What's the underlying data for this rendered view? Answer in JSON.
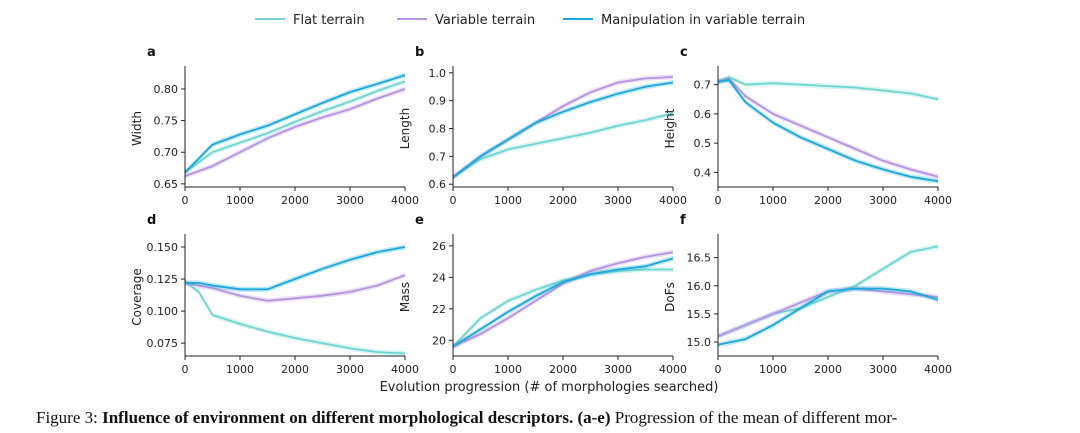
{
  "colors": {
    "flat": "#6fd6cf",
    "variable": "#b593e0",
    "manip": "#1ba8dc"
  },
  "legend": [
    "Flat terrain",
    "Variable terrain",
    "Manipulation in variable terrain"
  ],
  "xlabel": "Evolution progression (# of morphologies searched)",
  "caption": {
    "prefix": "Figure 3: ",
    "title": "Influence of environment on different morphological descriptors.",
    "ref": "(a-e)",
    "rest": " Progression of the mean of different mor-"
  },
  "chart_data": [
    {
      "type": "line",
      "panel": "a",
      "ylabel": "Width",
      "xlim": [
        0,
        4000
      ],
      "ylim": [
        0.645,
        0.83
      ],
      "xticks": [
        "0",
        "1000",
        "2000",
        "3000",
        "4000"
      ],
      "yticks": [
        0.65,
        0.7,
        0.75,
        0.8
      ],
      "ytick_labels": [
        "0.65",
        "0.70",
        "0.75",
        "0.80"
      ],
      "x": [
        0,
        500,
        1000,
        1500,
        2000,
        2500,
        3000,
        3500,
        4000
      ],
      "series": [
        {
          "name": "Flat terrain",
          "values": [
            0.668,
            0.7,
            0.715,
            0.73,
            0.748,
            0.765,
            0.78,
            0.797,
            0.812
          ]
        },
        {
          "name": "Variable terrain",
          "values": [
            0.662,
            0.678,
            0.7,
            0.722,
            0.74,
            0.755,
            0.768,
            0.785,
            0.8
          ]
        },
        {
          "name": "Manipulation in variable terrain",
          "values": [
            0.668,
            0.712,
            0.728,
            0.742,
            0.76,
            0.778,
            0.795,
            0.808,
            0.822
          ]
        }
      ]
    },
    {
      "type": "line",
      "panel": "b",
      "ylabel": "Length",
      "xlim": [
        0,
        4000
      ],
      "ylim": [
        0.59,
        1.01
      ],
      "xticks": [
        "0",
        "1000",
        "2000",
        "3000",
        "4000"
      ],
      "yticks": [
        0.6,
        0.7,
        0.8,
        0.9,
        1.0
      ],
      "ytick_labels": [
        "0.6",
        "0.7",
        "0.8",
        "0.9",
        "1.0"
      ],
      "x": [
        0,
        500,
        1000,
        1500,
        2000,
        2500,
        3000,
        3500,
        4000
      ],
      "series": [
        {
          "name": "Flat terrain",
          "values": [
            0.625,
            0.69,
            0.725,
            0.745,
            0.765,
            0.785,
            0.81,
            0.83,
            0.855
          ]
        },
        {
          "name": "Variable terrain",
          "values": [
            0.625,
            0.7,
            0.76,
            0.82,
            0.88,
            0.93,
            0.965,
            0.98,
            0.985
          ]
        },
        {
          "name": "Manipulation in variable terrain",
          "values": [
            0.625,
            0.7,
            0.76,
            0.82,
            0.86,
            0.895,
            0.925,
            0.95,
            0.965
          ]
        }
      ]
    },
    {
      "type": "line",
      "panel": "c",
      "ylabel": "Height",
      "xlim": [
        0,
        4000
      ],
      "ylim": [
        0.35,
        0.75
      ],
      "xticks": [
        "0",
        "1000",
        "2000",
        "3000",
        "4000"
      ],
      "yticks": [
        0.4,
        0.5,
        0.6,
        0.7
      ],
      "ytick_labels": [
        "0.4",
        "0.5",
        "0.6",
        "0.7"
      ],
      "x": [
        0,
        200,
        500,
        1000,
        1500,
        2000,
        2500,
        3000,
        3500,
        4000
      ],
      "series": [
        {
          "name": "Flat terrain",
          "values": [
            0.71,
            0.725,
            0.7,
            0.705,
            0.7,
            0.695,
            0.69,
            0.68,
            0.67,
            0.65
          ]
        },
        {
          "name": "Variable terrain",
          "values": [
            0.71,
            0.72,
            0.66,
            0.6,
            0.56,
            0.52,
            0.48,
            0.44,
            0.41,
            0.385
          ]
        },
        {
          "name": "Manipulation in variable terrain",
          "values": [
            0.71,
            0.715,
            0.64,
            0.57,
            0.52,
            0.48,
            0.44,
            0.41,
            0.385,
            0.37
          ]
        }
      ]
    },
    {
      "type": "line",
      "panel": "d",
      "ylabel": "Coverage",
      "xlim": [
        0,
        4000
      ],
      "ylim": [
        0.065,
        0.157
      ],
      "xticks": [
        "0",
        "1000",
        "2000",
        "3000",
        "4000"
      ],
      "yticks": [
        0.075,
        0.1,
        0.125,
        0.15
      ],
      "ytick_labels": [
        "0.075",
        "0.100",
        "0.125",
        "0.150"
      ],
      "x": [
        0,
        250,
        500,
        1000,
        1500,
        2000,
        2500,
        3000,
        3500,
        4000
      ],
      "series": [
        {
          "name": "Flat terrain",
          "values": [
            0.123,
            0.115,
            0.097,
            0.09,
            0.084,
            0.079,
            0.075,
            0.071,
            0.068,
            0.067
          ]
        },
        {
          "name": "Variable terrain",
          "values": [
            0.122,
            0.12,
            0.118,
            0.112,
            0.108,
            0.11,
            0.112,
            0.115,
            0.12,
            0.128
          ]
        },
        {
          "name": "Manipulation in variable terrain",
          "values": [
            0.122,
            0.122,
            0.12,
            0.117,
            0.117,
            0.125,
            0.133,
            0.14,
            0.146,
            0.15
          ]
        }
      ]
    },
    {
      "type": "line",
      "panel": "e",
      "ylabel": "Mass",
      "xlim": [
        0,
        4000
      ],
      "ylim": [
        19.0,
        26.5
      ],
      "xticks": [
        "0",
        "1000",
        "2000",
        "3000",
        "4000"
      ],
      "yticks": [
        20,
        22,
        24,
        26
      ],
      "ytick_labels": [
        "20",
        "22",
        "24",
        "26"
      ],
      "x": [
        0,
        500,
        1000,
        1500,
        2000,
        2500,
        3000,
        3500,
        4000
      ],
      "series": [
        {
          "name": "Flat terrain",
          "values": [
            19.6,
            21.4,
            22.5,
            23.2,
            23.8,
            24.2,
            24.4,
            24.5,
            24.5
          ]
        },
        {
          "name": "Variable terrain",
          "values": [
            19.6,
            20.4,
            21.4,
            22.5,
            23.6,
            24.4,
            24.9,
            25.3,
            25.6
          ]
        },
        {
          "name": "Manipulation in variable terrain",
          "values": [
            19.6,
            20.7,
            21.8,
            22.8,
            23.7,
            24.2,
            24.5,
            24.7,
            25.2
          ]
        }
      ]
    },
    {
      "type": "line",
      "panel": "f",
      "ylabel": "DoFs",
      "xlim": [
        0,
        4000
      ],
      "ylim": [
        14.75,
        16.85
      ],
      "xticks": [
        "0",
        "1000",
        "2000",
        "3000",
        "4000"
      ],
      "yticks": [
        15.0,
        15.5,
        16.0,
        16.5
      ],
      "ytick_labels": [
        "15.0",
        "15.5",
        "16.0",
        "16.5"
      ],
      "x": [
        0,
        500,
        1000,
        1500,
        2000,
        2500,
        3000,
        3500,
        4000
      ],
      "series": [
        {
          "name": "Flat terrain",
          "values": [
            15.1,
            15.3,
            15.5,
            15.6,
            15.8,
            16.0,
            16.3,
            16.6,
            16.7
          ]
        },
        {
          "name": "Variable terrain",
          "values": [
            15.1,
            15.3,
            15.5,
            15.7,
            15.9,
            15.95,
            15.9,
            15.85,
            15.8
          ]
        },
        {
          "name": "Manipulation in variable terrain",
          "values": [
            14.95,
            15.05,
            15.3,
            15.6,
            15.9,
            15.95,
            15.95,
            15.9,
            15.75
          ]
        }
      ]
    }
  ]
}
